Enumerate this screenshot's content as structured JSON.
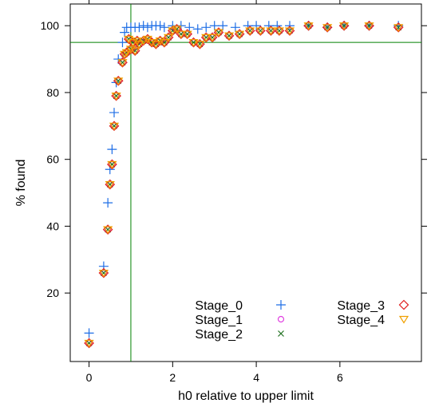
{
  "chart_data": {
    "type": "scatter",
    "xlabel": "h0 relative to upper limit",
    "ylabel": "% found",
    "xlim": [
      -0.45,
      7.95
    ],
    "ylim": [
      -0.5,
      106.5
    ],
    "xticks": [
      0,
      2,
      4,
      6
    ],
    "yticks": [
      20,
      40,
      60,
      80,
      100
    ],
    "grid": false,
    "legend_placement": "bottom-right, inside plot, two columns",
    "reference_lines": {
      "x": 1,
      "y": 95,
      "color": "#008000"
    },
    "legend": [
      "Stage_0",
      "Stage_1",
      "Stage_2",
      "Stage_3",
      "Stage_4"
    ],
    "series": [
      {
        "name": "Stage_0",
        "marker": "plus",
        "color": "#1e6ee6",
        "points": [
          [
            0,
            8
          ],
          [
            0.35,
            28
          ],
          [
            0.45,
            47
          ],
          [
            0.5,
            57
          ],
          [
            0.55,
            63
          ],
          [
            0.6,
            74
          ],
          [
            0.65,
            83
          ],
          [
            0.7,
            90
          ],
          [
            0.8,
            95
          ],
          [
            0.85,
            98
          ],
          [
            0.9,
            99.5
          ],
          [
            1.0,
            99.5
          ],
          [
            1.1,
            99.5
          ],
          [
            1.2,
            99.5
          ],
          [
            1.3,
            100
          ],
          [
            1.4,
            99.5
          ],
          [
            1.5,
            100
          ],
          [
            1.6,
            100
          ],
          [
            1.7,
            100
          ],
          [
            1.8,
            99.5
          ],
          [
            2.0,
            100
          ],
          [
            2.2,
            100
          ],
          [
            2.4,
            99.5
          ],
          [
            2.6,
            99
          ],
          [
            2.8,
            99.5
          ],
          [
            3.0,
            100
          ],
          [
            3.2,
            100
          ],
          [
            3.5,
            99.5
          ],
          [
            3.8,
            100
          ],
          [
            4.0,
            100
          ],
          [
            4.3,
            100
          ],
          [
            4.5,
            100
          ],
          [
            4.8,
            100
          ],
          [
            5.25,
            100
          ],
          [
            5.7,
            99.5
          ],
          [
            6.1,
            100
          ],
          [
            6.7,
            100
          ],
          [
            7.4,
            100
          ]
        ]
      },
      {
        "name": "Stage_1",
        "marker": "circle",
        "color": "#e040e0",
        "points": [
          [
            0,
            5
          ],
          [
            0.35,
            26
          ],
          [
            0.45,
            39
          ],
          [
            0.5,
            52.5
          ],
          [
            0.55,
            58.5
          ],
          [
            0.6,
            70
          ],
          [
            0.65,
            79
          ],
          [
            0.7,
            83.5
          ],
          [
            0.8,
            89
          ],
          [
            0.85,
            91.5
          ],
          [
            0.9,
            92
          ],
          [
            0.95,
            96
          ],
          [
            1.0,
            93
          ],
          [
            1.05,
            95
          ],
          [
            1.1,
            92.5
          ],
          [
            1.15,
            95.5
          ],
          [
            1.2,
            94.5
          ],
          [
            1.3,
            95.5
          ],
          [
            1.4,
            96
          ],
          [
            1.5,
            95
          ],
          [
            1.6,
            94.5
          ],
          [
            1.7,
            95.5
          ],
          [
            1.8,
            95
          ],
          [
            1.9,
            96.5
          ],
          [
            2.0,
            98.5
          ],
          [
            2.1,
            99
          ],
          [
            2.2,
            97.5
          ],
          [
            2.35,
            97.5
          ],
          [
            2.5,
            95
          ],
          [
            2.65,
            94.5
          ],
          [
            2.8,
            96.5
          ],
          [
            2.95,
            96.5
          ],
          [
            3.1,
            98
          ],
          [
            3.35,
            97
          ],
          [
            3.6,
            97.5
          ],
          [
            3.85,
            98.5
          ],
          [
            4.1,
            98.5
          ],
          [
            4.35,
            98.5
          ],
          [
            4.55,
            98.5
          ],
          [
            4.8,
            98.5
          ],
          [
            5.25,
            100
          ],
          [
            5.7,
            99.5
          ],
          [
            6.1,
            100
          ],
          [
            6.7,
            100
          ],
          [
            7.4,
            99.5
          ]
        ]
      },
      {
        "name": "Stage_2",
        "marker": "x",
        "color": "#207020",
        "points": [
          [
            0,
            5
          ],
          [
            0.35,
            26
          ],
          [
            0.45,
            39
          ],
          [
            0.5,
            52.5
          ],
          [
            0.55,
            58.5
          ],
          [
            0.6,
            70
          ],
          [
            0.65,
            79
          ],
          [
            0.7,
            83.5
          ],
          [
            0.8,
            89
          ],
          [
            0.85,
            91.5
          ],
          [
            0.9,
            92
          ],
          [
            0.95,
            96
          ],
          [
            1.0,
            93
          ],
          [
            1.05,
            95
          ],
          [
            1.1,
            92.5
          ],
          [
            1.15,
            95.5
          ],
          [
            1.2,
            94.5
          ],
          [
            1.3,
            95.5
          ],
          [
            1.4,
            96
          ],
          [
            1.5,
            95
          ],
          [
            1.6,
            94.5
          ],
          [
            1.7,
            95.5
          ],
          [
            1.8,
            95
          ],
          [
            1.9,
            96.5
          ],
          [
            2.0,
            98.5
          ],
          [
            2.1,
            99
          ],
          [
            2.2,
            97.5
          ],
          [
            2.35,
            97.5
          ],
          [
            2.5,
            95
          ],
          [
            2.65,
            94.5
          ],
          [
            2.8,
            96.5
          ],
          [
            2.95,
            96.5
          ],
          [
            3.1,
            98
          ],
          [
            3.35,
            97
          ],
          [
            3.6,
            97.5
          ],
          [
            3.85,
            98.5
          ],
          [
            4.1,
            98.5
          ],
          [
            4.35,
            98.5
          ],
          [
            4.55,
            98.5
          ],
          [
            4.8,
            98.5
          ],
          [
            5.25,
            100
          ],
          [
            5.7,
            99.5
          ],
          [
            6.1,
            100
          ],
          [
            6.7,
            100
          ],
          [
            7.4,
            99.5
          ]
        ]
      },
      {
        "name": "Stage_3",
        "marker": "diamond",
        "color": "#e02020",
        "points": [
          [
            0,
            5
          ],
          [
            0.35,
            26
          ],
          [
            0.45,
            39
          ],
          [
            0.5,
            52.5
          ],
          [
            0.55,
            58.5
          ],
          [
            0.6,
            70
          ],
          [
            0.65,
            79
          ],
          [
            0.7,
            83.5
          ],
          [
            0.8,
            89
          ],
          [
            0.85,
            91.5
          ],
          [
            0.9,
            92
          ],
          [
            0.95,
            96
          ],
          [
            1.0,
            93
          ],
          [
            1.05,
            95
          ],
          [
            1.1,
            92.5
          ],
          [
            1.15,
            95.5
          ],
          [
            1.2,
            94.5
          ],
          [
            1.3,
            95.5
          ],
          [
            1.4,
            96
          ],
          [
            1.5,
            95
          ],
          [
            1.6,
            94.5
          ],
          [
            1.7,
            95.5
          ],
          [
            1.8,
            95
          ],
          [
            1.9,
            96.5
          ],
          [
            2.0,
            98.5
          ],
          [
            2.1,
            99
          ],
          [
            2.2,
            97.5
          ],
          [
            2.35,
            97.5
          ],
          [
            2.5,
            95
          ],
          [
            2.65,
            94.5
          ],
          [
            2.8,
            96.5
          ],
          [
            2.95,
            96.5
          ],
          [
            3.1,
            98
          ],
          [
            3.35,
            97
          ],
          [
            3.6,
            97.5
          ],
          [
            3.85,
            98.5
          ],
          [
            4.1,
            98.5
          ],
          [
            4.35,
            98.5
          ],
          [
            4.55,
            98.5
          ],
          [
            4.8,
            98.5
          ],
          [
            5.25,
            100
          ],
          [
            5.7,
            99.5
          ],
          [
            6.1,
            100
          ],
          [
            6.7,
            100
          ],
          [
            7.4,
            99.5
          ]
        ]
      },
      {
        "name": "Stage_4",
        "marker": "triangle-down",
        "color": "#f0a000",
        "points": [
          [
            0,
            5
          ],
          [
            0.35,
            26
          ],
          [
            0.45,
            39
          ],
          [
            0.5,
            52.5
          ],
          [
            0.55,
            58.5
          ],
          [
            0.6,
            70
          ],
          [
            0.65,
            79
          ],
          [
            0.7,
            83.5
          ],
          [
            0.8,
            89
          ],
          [
            0.85,
            91.5
          ],
          [
            0.9,
            92
          ],
          [
            0.95,
            96
          ],
          [
            1.0,
            93
          ],
          [
            1.05,
            95
          ],
          [
            1.1,
            92.5
          ],
          [
            1.15,
            95.5
          ],
          [
            1.2,
            94.5
          ],
          [
            1.3,
            95.5
          ],
          [
            1.4,
            96
          ],
          [
            1.5,
            95
          ],
          [
            1.6,
            94.5
          ],
          [
            1.7,
            95.5
          ],
          [
            1.8,
            95
          ],
          [
            1.9,
            96.5
          ],
          [
            2.0,
            98.5
          ],
          [
            2.1,
            99
          ],
          [
            2.2,
            97.5
          ],
          [
            2.35,
            97.5
          ],
          [
            2.5,
            95
          ],
          [
            2.65,
            94.5
          ],
          [
            2.8,
            96.5
          ],
          [
            2.95,
            96.5
          ],
          [
            3.1,
            98
          ],
          [
            3.35,
            97
          ],
          [
            3.6,
            97.5
          ],
          [
            3.85,
            98.5
          ],
          [
            4.1,
            98.5
          ],
          [
            4.35,
            98.5
          ],
          [
            4.55,
            98.5
          ],
          [
            4.8,
            98.5
          ],
          [
            5.25,
            100
          ],
          [
            5.7,
            99.5
          ],
          [
            6.1,
            100
          ],
          [
            6.7,
            100
          ],
          [
            7.4,
            99.5
          ]
        ]
      }
    ]
  }
}
